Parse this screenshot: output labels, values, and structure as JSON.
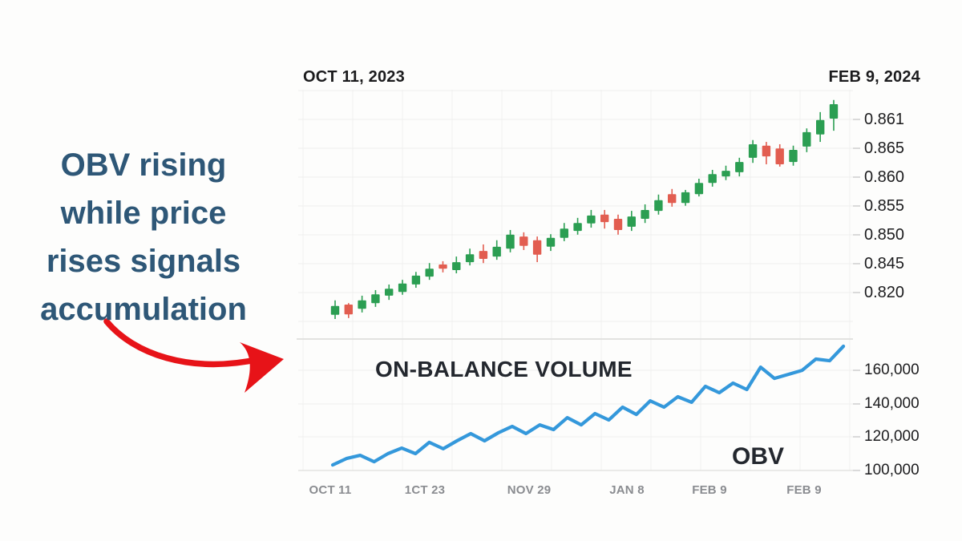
{
  "annotation": {
    "lines": [
      "OBV rising",
      "while price",
      "rises signals",
      "accumulation"
    ]
  },
  "header": {
    "start_date": "OCT 11, 2023",
    "end_date": "FEB 9, 2024"
  },
  "price_panel": {
    "y_axis_labels": [
      "0.861",
      "0.865",
      "0.860",
      "0.855",
      "0.850",
      "0.845",
      "0.820"
    ]
  },
  "obv_panel": {
    "title": "ON-BALANCE VOLUME",
    "line_label": "OBV",
    "y_axis_labels": [
      "160,000",
      "140,000",
      "120,000",
      "100,000"
    ],
    "x_axis_labels": [
      "OCT 11",
      "1CT 23",
      "NOV 29",
      "JAN 8",
      "FEB 9",
      "FEB 9"
    ]
  },
  "colors": {
    "up_candle": "#2b9e52",
    "down_candle": "#e25d50",
    "obv_line": "#3498db",
    "annotation_text": "#2e5777",
    "arrow": "#e71318",
    "grid": "#efefee",
    "grid_vertical": "#f1f1ef",
    "divider": "#e2e2e0",
    "axis_line": "#e3e3e1",
    "tick": "#cfcfce",
    "date_gray": "#8a8c90",
    "dark_text": "#1c1c1e"
  },
  "chart_data": [
    {
      "type": "candlestick",
      "title": "Price, OCT 11 2023 - FEB 9 2024 (steady uptrend)",
      "y_tick_labels": [
        "0.861",
        "0.865",
        "0.860",
        "0.855",
        "0.850",
        "0.845",
        "0.820"
      ],
      "y_range": [
        0.816,
        0.863
      ],
      "legend_position": "none",
      "grid": true,
      "candles": [
        {
          "o": 0.8169,
          "h": 0.82,
          "l": 0.816,
          "c": 0.8188
        },
        {
          "o": 0.8191,
          "h": 0.8194,
          "l": 0.8162,
          "c": 0.817
        },
        {
          "o": 0.8182,
          "h": 0.821,
          "l": 0.8174,
          "c": 0.82
        },
        {
          "o": 0.8194,
          "h": 0.8222,
          "l": 0.8186,
          "c": 0.8213
        },
        {
          "o": 0.821,
          "h": 0.8234,
          "l": 0.8201,
          "c": 0.8225
        },
        {
          "o": 0.8218,
          "h": 0.8244,
          "l": 0.8212,
          "c": 0.8236
        },
        {
          "o": 0.8234,
          "h": 0.8261,
          "l": 0.8227,
          "c": 0.8253
        },
        {
          "o": 0.8251,
          "h": 0.828,
          "l": 0.8244,
          "c": 0.8268
        },
        {
          "o": 0.8277,
          "h": 0.8284,
          "l": 0.826,
          "c": 0.8268
        },
        {
          "o": 0.8265,
          "h": 0.8294,
          "l": 0.8258,
          "c": 0.8282
        },
        {
          "o": 0.8282,
          "h": 0.8311,
          "l": 0.8275,
          "c": 0.8299
        },
        {
          "o": 0.8306,
          "h": 0.832,
          "l": 0.828,
          "c": 0.8289
        },
        {
          "o": 0.8294,
          "h": 0.8329,
          "l": 0.8287,
          "c": 0.8315
        },
        {
          "o": 0.8311,
          "h": 0.8351,
          "l": 0.8303,
          "c": 0.8341
        },
        {
          "o": 0.8337,
          "h": 0.8346,
          "l": 0.8308,
          "c": 0.8317
        },
        {
          "o": 0.8329,
          "h": 0.8337,
          "l": 0.8282,
          "c": 0.8298
        },
        {
          "o": 0.8315,
          "h": 0.8342,
          "l": 0.8306,
          "c": 0.8334
        },
        {
          "o": 0.8334,
          "h": 0.8366,
          "l": 0.8327,
          "c": 0.8354
        },
        {
          "o": 0.8349,
          "h": 0.8377,
          "l": 0.8341,
          "c": 0.8366
        },
        {
          "o": 0.8365,
          "h": 0.8394,
          "l": 0.8356,
          "c": 0.8382
        },
        {
          "o": 0.8384,
          "h": 0.8394,
          "l": 0.8354,
          "c": 0.8368
        },
        {
          "o": 0.8375,
          "h": 0.8384,
          "l": 0.8341,
          "c": 0.8351
        },
        {
          "o": 0.8358,
          "h": 0.8392,
          "l": 0.8349,
          "c": 0.838
        },
        {
          "o": 0.8375,
          "h": 0.8406,
          "l": 0.8366,
          "c": 0.8394
        },
        {
          "o": 0.8392,
          "h": 0.8427,
          "l": 0.8384,
          "c": 0.8415
        },
        {
          "o": 0.8428,
          "h": 0.8439,
          "l": 0.8401,
          "c": 0.8409
        },
        {
          "o": 0.8409,
          "h": 0.8437,
          "l": 0.8403,
          "c": 0.8432
        },
        {
          "o": 0.8428,
          "h": 0.8461,
          "l": 0.8423,
          "c": 0.8452
        },
        {
          "o": 0.8452,
          "h": 0.848,
          "l": 0.8444,
          "c": 0.8471
        },
        {
          "o": 0.8466,
          "h": 0.8489,
          "l": 0.8458,
          "c": 0.8478
        },
        {
          "o": 0.8475,
          "h": 0.8506,
          "l": 0.8466,
          "c": 0.8497
        },
        {
          "o": 0.8506,
          "h": 0.8544,
          "l": 0.8495,
          "c": 0.8535
        },
        {
          "o": 0.8532,
          "h": 0.854,
          "l": 0.8492,
          "c": 0.8509
        },
        {
          "o": 0.8526,
          "h": 0.8535,
          "l": 0.8487,
          "c": 0.8492
        },
        {
          "o": 0.8497,
          "h": 0.8532,
          "l": 0.8489,
          "c": 0.8523
        },
        {
          "o": 0.853,
          "h": 0.8569,
          "l": 0.8518,
          "c": 0.8561
        },
        {
          "o": 0.8556,
          "h": 0.8604,
          "l": 0.854,
          "c": 0.8587
        },
        {
          "o": 0.859,
          "h": 0.863,
          "l": 0.8564,
          "c": 0.8621
        }
      ]
    },
    {
      "type": "line",
      "title": "ON-BALANCE VOLUME",
      "x_tick_labels": [
        "OCT 11",
        "1CT 23",
        "NOV 29",
        "JAN 8",
        "FEB 9",
        "FEB 9"
      ],
      "y_ticks": [
        100000,
        120000,
        140000,
        160000
      ],
      "y_range": [
        100000,
        174000
      ],
      "grid": true,
      "legend_position": "none",
      "series": [
        {
          "name": "OBV",
          "values": [
            103300,
            107100,
            109000,
            105200,
            110000,
            113300,
            110000,
            116700,
            112900,
            117600,
            121900,
            117600,
            122400,
            126200,
            121900,
            127100,
            124300,
            131400,
            127100,
            133800,
            130000,
            137600,
            133300,
            141400,
            137600,
            143800,
            140500,
            150000,
            146200,
            151900,
            148100,
            161400,
            154700,
            157100,
            159500,
            166200,
            165200,
            173800
          ]
        }
      ]
    }
  ]
}
